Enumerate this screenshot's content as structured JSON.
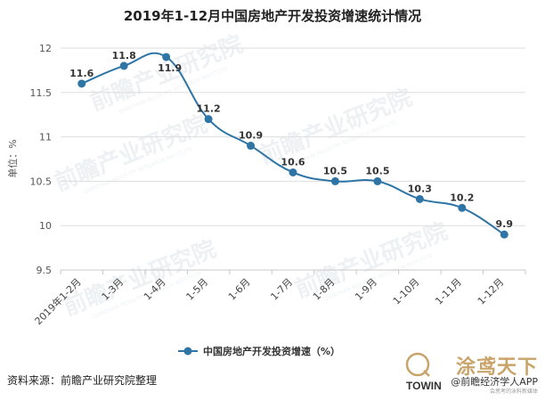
{
  "chart_data": {
    "type": "line",
    "title": "2019年1-12月中国房地产开发投资增速统计情况",
    "ylabel": "单位：%",
    "xlabel": "",
    "categories": [
      "2019年1-2月",
      "1-3月",
      "1-4月",
      "1-5月",
      "1-6月",
      "1-7月",
      "1-8月",
      "1-9月",
      "1-10月",
      "1-11月",
      "1-12月"
    ],
    "series": [
      {
        "name": "中国房地产开发投资增速（%）",
        "values": [
          11.6,
          11.8,
          11.9,
          11.2,
          10.9,
          10.6,
          10.5,
          10.5,
          10.3,
          10.2,
          9.9
        ]
      }
    ],
    "data_labels": [
      "11.6",
      "11.8",
      "11.9",
      "11.2",
      "10.9",
      "10.6",
      "10.5",
      "10.5",
      "10.3",
      "10.2",
      "9.9"
    ],
    "ylim": [
      9.5,
      12
    ],
    "yticks": [
      "9.5",
      "10",
      "10.5",
      "11",
      "11.5",
      "12"
    ],
    "grid": "horizontal",
    "legend_position": "bottom-center",
    "line_color": "#2e75a6"
  },
  "footer": {
    "source": "资料来源：前瞻产业研究院整理",
    "brand_cn": "涂鸢天下",
    "brand_en": "TOWIN",
    "brand_app": "@前瞻经济学人APP",
    "brand_tag": "会思考的泳料新媒体"
  },
  "watermark": {
    "cn": "前瞻产业研究院",
    "en": "QIANZHAN INDUSTRY RESEARCH INSTITUTE",
    "color": "#eef1f4"
  }
}
